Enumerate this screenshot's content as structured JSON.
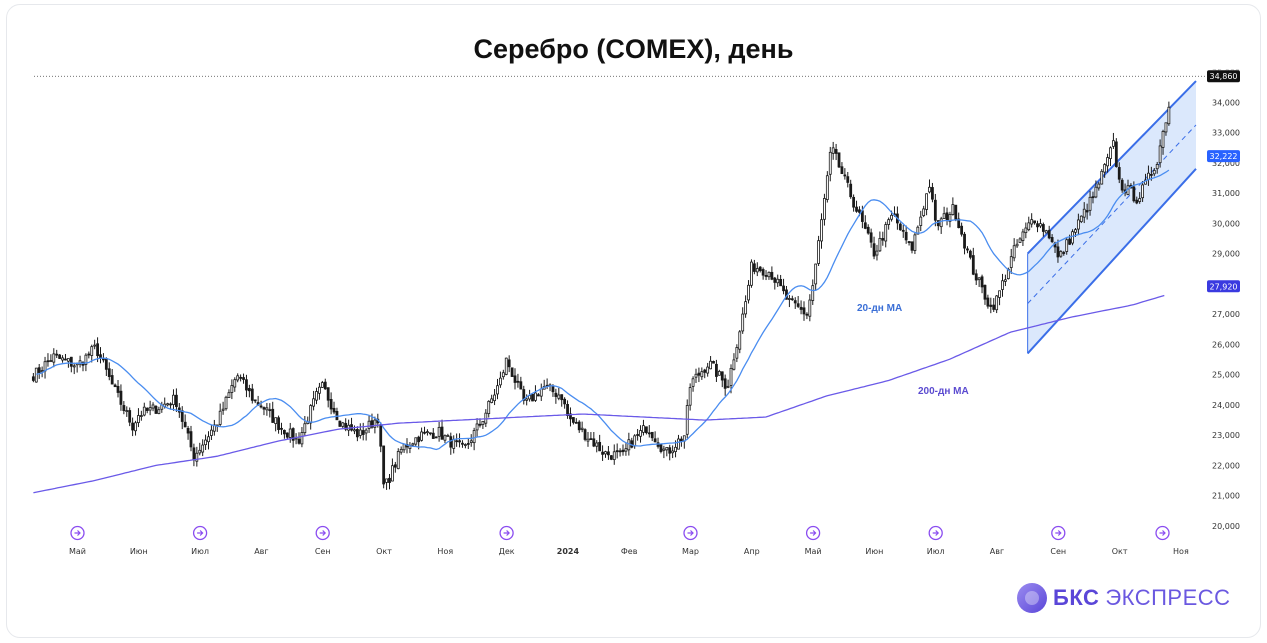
{
  "title": "Серебро (COMEX), день",
  "logo": {
    "brand": "БКС",
    "name": "ЭКСПРЕСС"
  },
  "colors": {
    "up": "#1a1a1a",
    "down": "#1a1a1a",
    "ma20": "#4a8df0",
    "ma200": "#6a5ae8",
    "channel": "#3a6ee8",
    "channel_fill": "#cfe0fb",
    "label_ma20_bg": "#2962ff",
    "label_ma200_bg": "#3a3ae0",
    "label_price_bg": "#111111",
    "event_icon": "#8a4cf0"
  },
  "chart_data": {
    "type": "candlestick",
    "title": "Серебро (COMEX), день",
    "ylim": [
      20000,
      35000
    ],
    "y_ticks": [
      "20,000",
      "21,000",
      "22,000",
      "23,000",
      "24,000",
      "25,000",
      "26,000",
      "27,000",
      "28,000",
      "29,000",
      "30,000",
      "31,000",
      "32,000",
      "33,000",
      "34,000"
    ],
    "y_tick_values": [
      20000,
      21000,
      22000,
      23000,
      24000,
      25000,
      26000,
      27000,
      28000,
      29000,
      30000,
      31000,
      32000,
      33000,
      34000
    ],
    "x_labels": [
      "Май",
      "Июн",
      "Июл",
      "Авг",
      "Сен",
      "Окт",
      "Ноя",
      "Дек",
      "2024",
      "Фев",
      "Мар",
      "Апр",
      "Май",
      "Июн",
      "Июл",
      "Авг",
      "Сен",
      "Окт",
      "Ноя"
    ],
    "x_label_positions": [
      0.0,
      1.0,
      2.0,
      3.0,
      4.0,
      5.0,
      6.0,
      7.0,
      8.0,
      9.0,
      10.0,
      11.0,
      12.0,
      13.0,
      14.0,
      15.0,
      16.0,
      17.0,
      18.0
    ],
    "price_anchor_months": [
      -0.7,
      -0.4,
      0.0,
      0.3,
      0.6,
      0.9,
      1.0,
      1.3,
      1.6,
      1.9,
      2.0,
      2.3,
      2.6,
      2.9,
      3.0,
      3.3,
      3.6,
      3.9,
      4.0,
      4.3,
      4.6,
      4.9,
      5.0,
      5.3,
      5.6,
      5.9,
      6.0,
      6.3,
      6.6,
      6.9,
      7.0,
      7.3,
      7.6,
      7.9,
      8.0,
      8.3,
      8.6,
      8.9,
      9.0,
      9.3,
      9.6,
      9.9,
      10.0,
      10.3,
      10.6,
      10.9,
      11.0,
      11.3,
      11.6,
      11.9,
      12.0,
      12.3,
      12.6,
      12.9,
      13.0,
      13.3,
      13.6,
      13.9,
      14.0,
      14.3,
      14.6,
      14.9,
      15.0,
      15.3,
      15.6,
      15.9,
      16.0,
      16.3,
      16.6,
      16.9,
      17.0,
      17.3,
      17.6,
      17.9
    ],
    "price_anchor_values": [
      25000,
      25600,
      25300,
      25900,
      24500,
      23300,
      23700,
      23900,
      24200,
      22300,
      22600,
      23500,
      25000,
      24100,
      24000,
      23300,
      22800,
      24300,
      24600,
      23400,
      23000,
      23600,
      21200,
      22600,
      23000,
      23100,
      22900,
      22500,
      23500,
      24800,
      25500,
      24000,
      24600,
      24300,
      23600,
      23000,
      22400,
      22300,
      22700,
      23300,
      22400,
      23000,
      24700,
      25400,
      24600,
      27400,
      28600,
      28400,
      27400,
      27000,
      28000,
      32500,
      31000,
      29500,
      29000,
      30300,
      29100,
      31300,
      29900,
      30500,
      28500,
      27200,
      27500,
      29200,
      30200,
      29500,
      28800,
      29900,
      31000,
      32600,
      31300,
      30800,
      32000,
      34800
    ],
    "ma20_label": "20-дн MA",
    "ma200_label": "200-дн MA",
    "ma200_anchor_values": [
      21100,
      21500,
      22000,
      22300,
      22800,
      23200,
      23400,
      23500,
      23600,
      23700,
      23600,
      23500,
      23600,
      24300,
      24800,
      25500,
      26400,
      26900,
      27300,
      27900
    ],
    "channel": {
      "start_month": 15.5,
      "end_month": 19.3,
      "low_start": 25700,
      "low_end": 31800,
      "high_start": 29000,
      "high_end": 34700
    },
    "last_price_label": "34,860",
    "ma20_price_label": "32,222",
    "ma200_price_label": "27,920",
    "top_partial_tick": "35,000",
    "event_icon_months": [
      0.0,
      2.0,
      4.0,
      7.0,
      10.0,
      12.0,
      14.0,
      16.0,
      17.7
    ],
    "legend": "none",
    "grid": false
  }
}
